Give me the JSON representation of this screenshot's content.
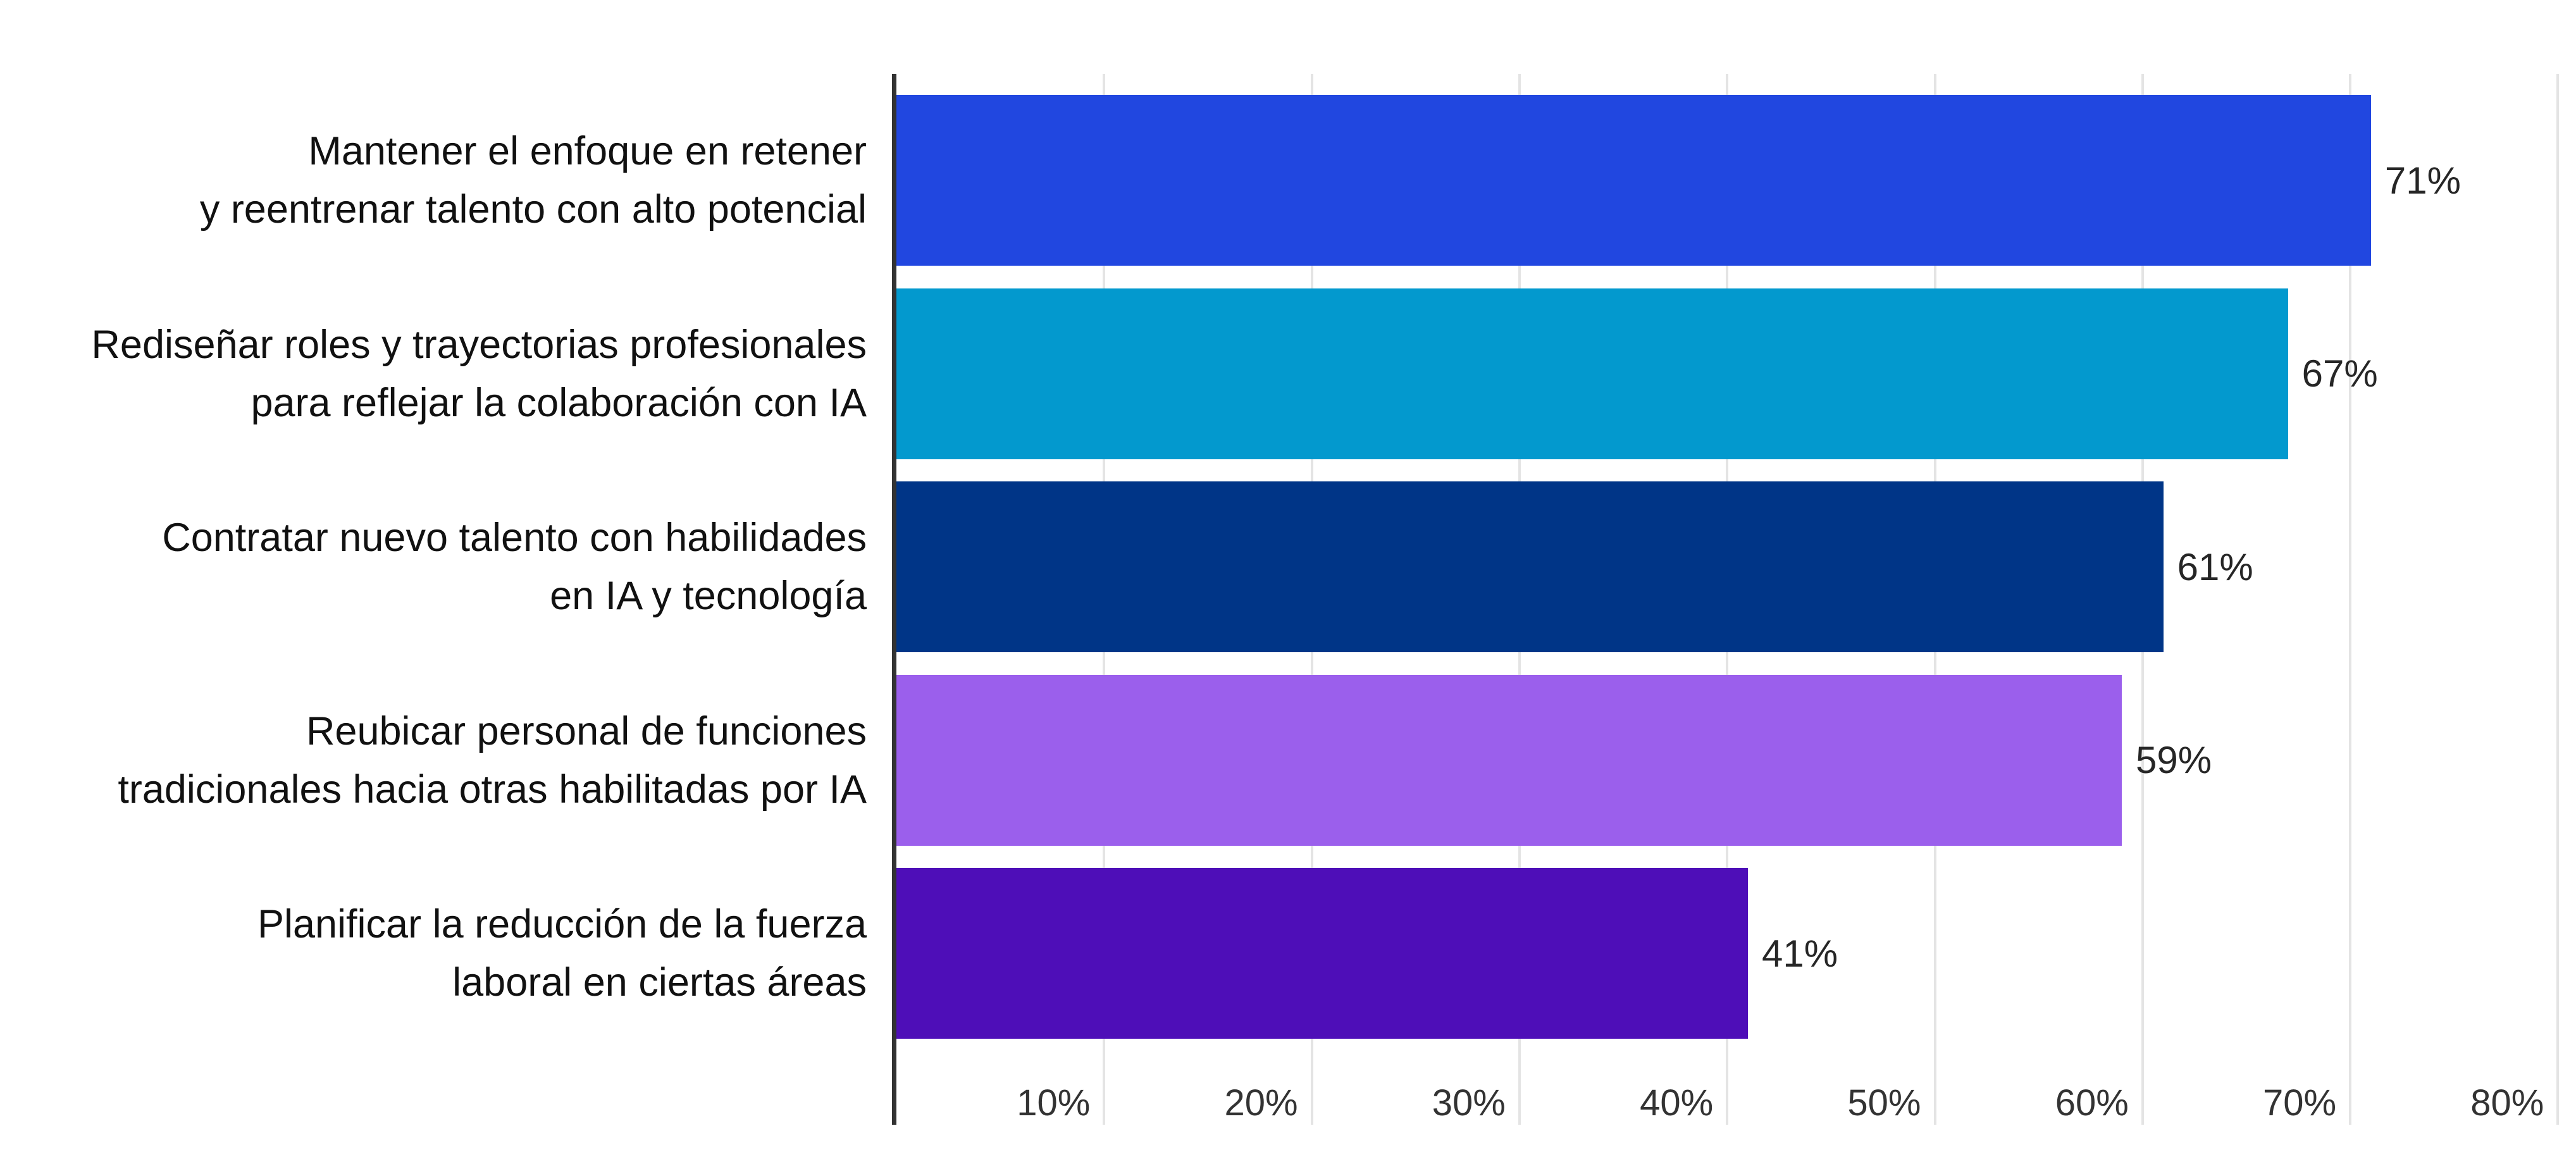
{
  "chart_data": {
    "type": "bar",
    "orientation": "horizontal",
    "title": "",
    "xlabel": "",
    "ylabel": "",
    "legend_position": "none",
    "x_axis": {
      "min": 0,
      "max": 80,
      "tick_step": 10,
      "unit": "%",
      "grid": true,
      "tick_labels": [
        "10%",
        "20%",
        "30%",
        "40%",
        "50%",
        "60%",
        "70%",
        "80%"
      ]
    },
    "categories": [
      {
        "lines": [
          "Mantener el enfoque en retener",
          "y reentrenar talento con alto potencial"
        ],
        "full": "Mantener el enfoque en retener y reentrenar talento con alto potencial"
      },
      {
        "lines": [
          "Rediseñar roles y trayectorias profesionales",
          "para reflejar la colaboración con IA"
        ],
        "full": "Rediseñar roles y trayectorias profesionales para reflejar la colaboración con IA"
      },
      {
        "lines": [
          "Contratar nuevo talento con habilidades",
          "en IA y tecnología"
        ],
        "full": "Contratar nuevo talento con habilidades en IA y tecnología"
      },
      {
        "lines": [
          "Reubicar personal de funciones",
          "tradicionales hacia otras habilitadas por IA"
        ],
        "full": "Reubicar personal de funciones tradicionales hacia otras habilitadas por IA"
      },
      {
        "lines": [
          "Planificar la reducción de la fuerza",
          "laboral en ciertas áreas"
        ],
        "full": "Planificar la reducción de la fuerza laboral en ciertas áreas"
      }
    ],
    "values": [
      71,
      67,
      61,
      59,
      41
    ],
    "value_labels": [
      "71%",
      "67%",
      "61%",
      "59%",
      "41%"
    ],
    "bar_colors": [
      "#2147E0",
      "#0399CE",
      "#003587",
      "#9B5FEC",
      "#4E0EB8"
    ]
  },
  "style_colors": {
    "background": "#ffffff",
    "axis_line": "#333333",
    "gridline": "#e4e4e4",
    "tick_text": "#333333",
    "value_text": "#262626",
    "category_text": "#111111"
  }
}
